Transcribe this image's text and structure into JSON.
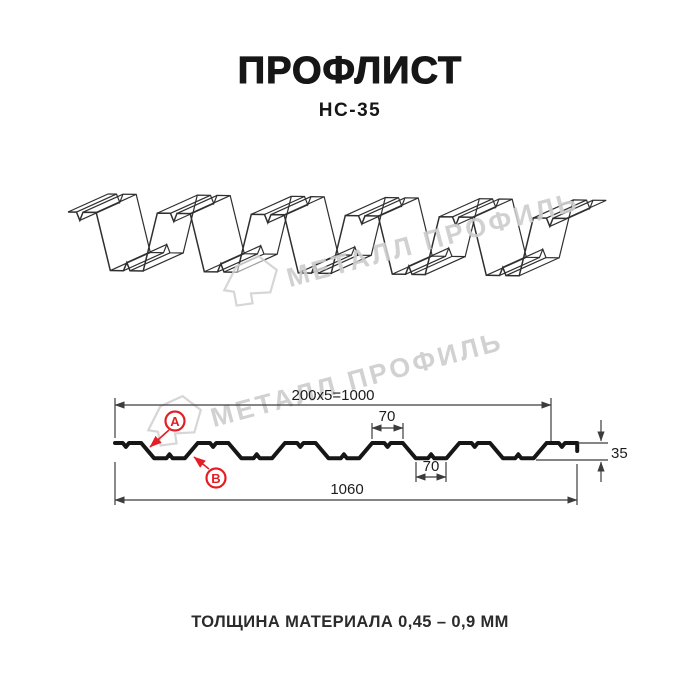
{
  "header": {
    "title": "ПРОФЛИСТ",
    "subtitle": "НС-35"
  },
  "watermark": {
    "text": "МЕТАЛЛ ПРОФИЛЬ",
    "logo": "metall-profil-logomark"
  },
  "dimensions": {
    "width_formula": "200x5=1000",
    "flange_top": "70",
    "flange_bottom": "70",
    "height": "35",
    "total_width": "1060"
  },
  "section_labels": {
    "a": "A",
    "b": "B"
  },
  "footer": {
    "thickness_note": "ТОЛЩИНА МАТЕРИАЛА 0,45 – 0,9 ММ"
  },
  "colors": {
    "accent_red": "#e31e24",
    "ink": "#161616",
    "drawing_line": "#2f2f2f",
    "dimension_line": "#3c3c3c",
    "watermark_gray": "#cdcdcd"
  }
}
